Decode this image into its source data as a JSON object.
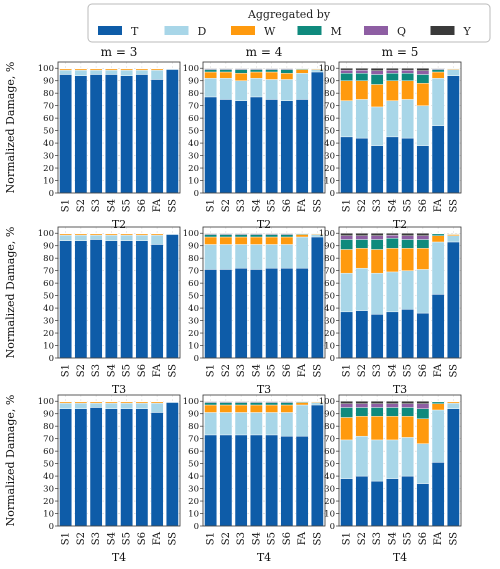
{
  "legend": {
    "title": "Aggregated by",
    "entries": [
      {
        "name": "T",
        "color": "#0e5ca8"
      },
      {
        "name": "D",
        "color": "#a8d6e8"
      },
      {
        "name": "W",
        "color": "#ff9a0e"
      },
      {
        "name": "M",
        "color": "#0f8a7d"
      },
      {
        "name": "Q",
        "color": "#8e5ea3"
      },
      {
        "name": "Y",
        "color": "#3a3a3a"
      }
    ]
  },
  "ylabel": "Normalized Damage, %",
  "column_titles": [
    "m = 3",
    "m = 4",
    "m = 5"
  ],
  "chart_data": {
    "type": "bar",
    "stacked": true,
    "categories": [
      "S1",
      "S2",
      "S3",
      "S4",
      "S5",
      "S6",
      "FA",
      "SS"
    ],
    "ylim": [
      0,
      105
    ],
    "yticks": [
      0,
      10,
      20,
      30,
      40,
      50,
      60,
      70,
      80,
      90,
      100
    ],
    "grid": true,
    "legend_position": "top",
    "panels": [
      {
        "xlabel": "T2",
        "title": "m = 3",
        "series": [
          {
            "name": "T",
            "values": [
              95,
              94,
              95,
              95,
              94,
              95,
              91,
              99
            ]
          },
          {
            "name": "D",
            "values": [
              3.5,
              4.5,
              3.5,
              3.5,
              4.5,
              3.5,
              7.5,
              0.5
            ]
          },
          {
            "name": "W",
            "values": [
              1.0,
              1.0,
              1.0,
              1.0,
              1.0,
              1.0,
              1.0,
              0.3
            ]
          },
          {
            "name": "M",
            "values": [
              0.3,
              0.3,
              0.3,
              0.3,
              0.3,
              0.3,
              0.3,
              0.1
            ]
          },
          {
            "name": "Q",
            "values": [
              0.1,
              0.1,
              0.1,
              0.1,
              0.1,
              0.1,
              0.1,
              0.05
            ]
          },
          {
            "name": "Y",
            "values": [
              0.1,
              0.1,
              0.1,
              0.1,
              0.1,
              0.1,
              0.1,
              0.05
            ]
          }
        ]
      },
      {
        "xlabel": "T2",
        "title": "m = 4",
        "series": [
          {
            "name": "T",
            "values": [
              77,
              75,
              74,
              77,
              75,
              74,
              75,
              97
            ]
          },
          {
            "name": "D",
            "values": [
              15,
              17,
              16,
              15,
              16,
              17,
              21,
              2
            ]
          },
          {
            "name": "W",
            "values": [
              5,
              5,
              6,
              5,
              6,
              5,
              3,
              0.6
            ]
          },
          {
            "name": "M",
            "values": [
              2,
              2,
              3,
              2,
              2,
              3,
              0.7,
              0.2
            ]
          },
          {
            "name": "Q",
            "values": [
              0.6,
              0.6,
              0.6,
              0.6,
              0.6,
              0.6,
              0.2,
              0.1
            ]
          },
          {
            "name": "Y",
            "values": [
              0.4,
              0.4,
              0.4,
              0.4,
              0.4,
              0.4,
              0.1,
              0.1
            ]
          }
        ]
      },
      {
        "xlabel": "T2",
        "title": "m = 5",
        "series": [
          {
            "name": "T",
            "values": [
              45,
              44,
              38,
              45,
              44,
              38,
              54,
              94
            ]
          },
          {
            "name": "D",
            "values": [
              29,
              31,
              31,
              29,
              31,
              32,
              38,
              5
            ]
          },
          {
            "name": "W",
            "values": [
              16,
              15,
              18,
              16,
              15,
              18,
              5,
              0.6
            ]
          },
          {
            "name": "M",
            "values": [
              6,
              6,
              8,
              6,
              6,
              7,
              2,
              0.2
            ]
          },
          {
            "name": "Q",
            "values": [
              2.5,
              2.5,
              3,
              2.5,
              2.5,
              3,
              0.6,
              0.1
            ]
          },
          {
            "name": "Y",
            "values": [
              1.5,
              1.5,
              2,
              1.5,
              1.5,
              2,
              0.4,
              0.1
            ]
          }
        ]
      },
      {
        "xlabel": "T3",
        "title": "",
        "series": [
          {
            "name": "T",
            "values": [
              94,
              94,
              95,
              94,
              94,
              94,
              91,
              99
            ]
          },
          {
            "name": "D",
            "values": [
              4.5,
              4.5,
              3.5,
              4.5,
              4.5,
              4.5,
              7.5,
              0.5
            ]
          },
          {
            "name": "W",
            "values": [
              1.0,
              1.0,
              1.0,
              1.0,
              1.0,
              1.0,
              1.0,
              0.3
            ]
          },
          {
            "name": "M",
            "values": [
              0.3,
              0.3,
              0.3,
              0.3,
              0.3,
              0.3,
              0.3,
              0.1
            ]
          },
          {
            "name": "Q",
            "values": [
              0.1,
              0.1,
              0.1,
              0.1,
              0.1,
              0.1,
              0.1,
              0.05
            ]
          },
          {
            "name": "Y",
            "values": [
              0.1,
              0.1,
              0.1,
              0.1,
              0.1,
              0.1,
              0.1,
              0.05
            ]
          }
        ]
      },
      {
        "xlabel": "T3",
        "title": "",
        "series": [
          {
            "name": "T",
            "values": [
              71,
              71,
              72,
              71,
              72,
              72,
              72,
              97
            ]
          },
          {
            "name": "D",
            "values": [
              20,
              20,
              19,
              20,
              19,
              19,
              25,
              2
            ]
          },
          {
            "name": "W",
            "values": [
              6,
              6,
              6,
              6,
              6,
              6,
              2,
              0.6
            ]
          },
          {
            "name": "M",
            "values": [
              2,
              2,
              2,
              2,
              2,
              2,
              0.7,
              0.2
            ]
          },
          {
            "name": "Q",
            "values": [
              0.6,
              0.6,
              0.6,
              0.6,
              0.6,
              0.6,
              0.2,
              0.1
            ]
          },
          {
            "name": "Y",
            "values": [
              0.4,
              0.4,
              0.4,
              0.4,
              0.4,
              0.4,
              0.1,
              0.1
            ]
          }
        ]
      },
      {
        "xlabel": "T3",
        "title": "",
        "series": [
          {
            "name": "T",
            "values": [
              37,
              38,
              35,
              37,
              39,
              36,
              51,
              93
            ]
          },
          {
            "name": "D",
            "values": [
              31,
              34,
              33,
              32,
              31,
              35,
              42,
              5
            ]
          },
          {
            "name": "W",
            "values": [
              19,
              16,
              19,
              19,
              18,
              17,
              5,
              1.0
            ]
          },
          {
            "name": "M",
            "values": [
              8,
              7,
              8,
              8,
              7,
              7,
              1.5,
              0.4
            ]
          },
          {
            "name": "Q",
            "values": [
              3,
              3,
              3,
              2.5,
              3,
              3,
              0.3,
              0.2
            ]
          },
          {
            "name": "Y",
            "values": [
              2,
              2,
              2,
              1.5,
              2,
              2,
              0.2,
              0.1
            ]
          }
        ]
      },
      {
        "xlabel": "T4",
        "title": "",
        "series": [
          {
            "name": "T",
            "values": [
              94,
              94,
              95,
              94,
              94,
              94,
              91,
              99
            ]
          },
          {
            "name": "D",
            "values": [
              4.5,
              4.5,
              3.5,
              4.5,
              4.5,
              4.5,
              7.5,
              0.5
            ]
          },
          {
            "name": "W",
            "values": [
              1.0,
              1.0,
              1.0,
              1.0,
              1.0,
              1.0,
              1.0,
              0.3
            ]
          },
          {
            "name": "M",
            "values": [
              0.3,
              0.3,
              0.3,
              0.3,
              0.3,
              0.3,
              0.3,
              0.1
            ]
          },
          {
            "name": "Q",
            "values": [
              0.1,
              0.1,
              0.1,
              0.1,
              0.1,
              0.1,
              0.1,
              0.05
            ]
          },
          {
            "name": "Y",
            "values": [
              0.1,
              0.1,
              0.1,
              0.1,
              0.1,
              0.1,
              0.1,
              0.05
            ]
          }
        ]
      },
      {
        "xlabel": "T4",
        "title": "",
        "series": [
          {
            "name": "T",
            "values": [
              73,
              73,
              73,
              73,
              73,
              72,
              72,
              97
            ]
          },
          {
            "name": "D",
            "values": [
              18,
              18,
              18,
              18,
              18,
              19,
              25,
              2
            ]
          },
          {
            "name": "W",
            "values": [
              6,
              6,
              6,
              6,
              6,
              6,
              2,
              0.6
            ]
          },
          {
            "name": "M",
            "values": [
              2,
              2,
              2,
              2,
              2,
              2,
              0.7,
              0.2
            ]
          },
          {
            "name": "Q",
            "values": [
              0.6,
              0.6,
              0.6,
              0.6,
              0.6,
              0.6,
              0.2,
              0.1
            ]
          },
          {
            "name": "Y",
            "values": [
              0.4,
              0.4,
              0.4,
              0.4,
              0.4,
              0.4,
              0.1,
              0.1
            ]
          }
        ]
      },
      {
        "xlabel": "T4",
        "title": "",
        "series": [
          {
            "name": "T",
            "values": [
              38,
              40,
              36,
              38,
              40,
              34,
              51,
              94
            ]
          },
          {
            "name": "D",
            "values": [
              31,
              32,
              33,
              31,
              31,
              32,
              42,
              4.5
            ]
          },
          {
            "name": "W",
            "values": [
              18,
              16,
              19,
              19,
              17,
              20,
              5,
              1.0
            ]
          },
          {
            "name": "M",
            "values": [
              8,
              7,
              7,
              7,
              7,
              8,
              1.5,
              0.3
            ]
          },
          {
            "name": "Q",
            "values": [
              3,
              3,
              3,
              3,
              3,
              4,
              0.3,
              0.1
            ]
          },
          {
            "name": "Y",
            "values": [
              2,
              2,
              2,
              2,
              2,
              2,
              0.2,
              0.1
            ]
          }
        ]
      }
    ]
  }
}
